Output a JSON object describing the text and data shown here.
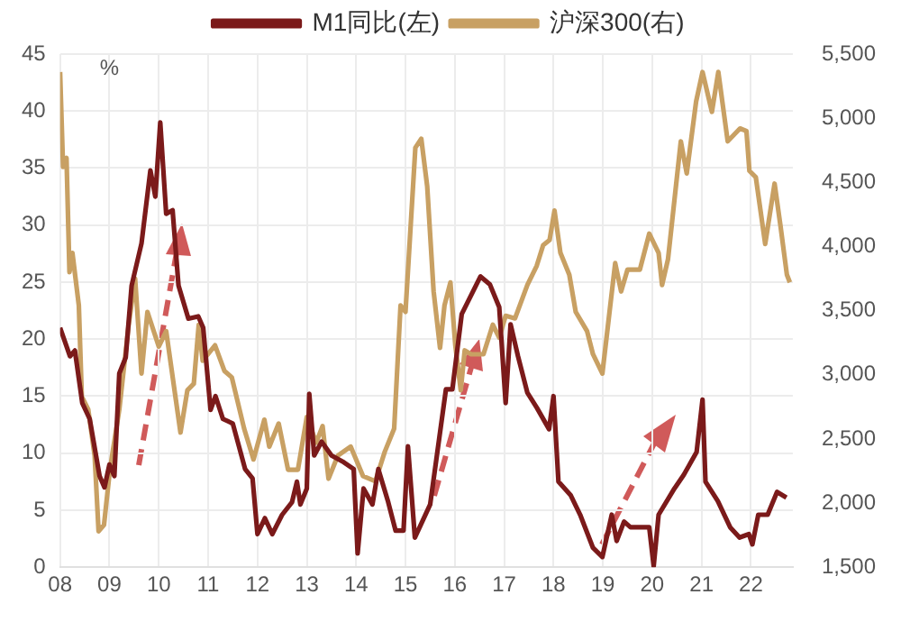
{
  "chart_data": {
    "type": "line",
    "ylabel": "%",
    "legend": "top",
    "grid": true,
    "marker": "none",
    "line_style": "solid",
    "xlim": [
      2008,
      2022.85
    ],
    "xticks": [
      {
        "value": 2008,
        "label": "08"
      },
      {
        "value": 2009,
        "label": "09"
      },
      {
        "value": 2010,
        "label": "10"
      },
      {
        "value": 2011,
        "label": "11"
      },
      {
        "value": 2012,
        "label": "12"
      },
      {
        "value": 2013,
        "label": "13"
      },
      {
        "value": 2014,
        "label": "14"
      },
      {
        "value": 2015,
        "label": "15"
      },
      {
        "value": 2016,
        "label": "16"
      },
      {
        "value": 2017,
        "label": "17"
      },
      {
        "value": 2018,
        "label": "18"
      },
      {
        "value": 2019,
        "label": "19"
      },
      {
        "value": 2020,
        "label": "20"
      },
      {
        "value": 2021,
        "label": "21"
      },
      {
        "value": 2022,
        "label": "22"
      }
    ],
    "ylim": [
      0,
      45
    ],
    "yticks": [
      0,
      5,
      10,
      15,
      20,
      25,
      30,
      35,
      40,
      45
    ],
    "y2lim": [
      1500,
      5500
    ],
    "y2ticks": [
      {
        "value": 1500,
        "label": "1,500"
      },
      {
        "value": 2000,
        "label": "2,000"
      },
      {
        "value": 2500,
        "label": "2,500"
      },
      {
        "value": 3000,
        "label": "3,000"
      },
      {
        "value": 3500,
        "label": "3,500"
      },
      {
        "value": 4000,
        "label": "4,000"
      },
      {
        "value": 4500,
        "label": "4,500"
      },
      {
        "value": 5000,
        "label": "5,000"
      },
      {
        "value": 5500,
        "label": "5,500"
      }
    ],
    "series": [
      {
        "name": "M1同比(左)",
        "color": "#7b1a1a",
        "x": [
          2008.0,
          2008.2,
          2008.3,
          2008.45,
          2008.6,
          2008.8,
          2008.9,
          2009.0,
          2009.1,
          2009.2,
          2009.33,
          2009.45,
          2009.65,
          2009.83,
          2009.93,
          2010.03,
          2010.15,
          2010.28,
          2010.4,
          2010.6,
          2010.8,
          2010.9,
          2011.05,
          2011.15,
          2011.3,
          2011.5,
          2011.6,
          2011.75,
          2011.9,
          2012.0,
          2012.15,
          2012.3,
          2012.5,
          2012.7,
          2012.8,
          2012.87,
          2013.0,
          2013.05,
          2013.15,
          2013.3,
          2013.5,
          2013.75,
          2013.95,
          2014.03,
          2014.15,
          2014.33,
          2014.45,
          2014.65,
          2014.8,
          2014.96,
          2015.05,
          2015.19,
          2015.5,
          2015.82,
          2015.95,
          2016.14,
          2016.52,
          2016.71,
          2016.9,
          2017.03,
          2017.13,
          2017.28,
          2017.47,
          2017.66,
          2017.91,
          2018.0,
          2018.1,
          2018.35,
          2018.54,
          2018.8,
          2018.99,
          2019.18,
          2019.28,
          2019.43,
          2019.56,
          2019.94,
          2020.03,
          2020.13,
          2020.45,
          2020.64,
          2020.9,
          2021.02,
          2021.08,
          2021.33,
          2021.58,
          2021.77,
          2021.96,
          2022.03,
          2022.15,
          2022.34,
          2022.53,
          2022.72
        ],
        "values": [
          21,
          18.5,
          19,
          14.4,
          13,
          8,
          7,
          9,
          8,
          17,
          18.4,
          24.7,
          28.4,
          34.8,
          32.5,
          39,
          31,
          31.3,
          24.7,
          21.8,
          22,
          21,
          13.8,
          15,
          13,
          12.6,
          11,
          8.6,
          7.8,
          2.9,
          4.3,
          2.9,
          4.6,
          5.7,
          7.5,
          5.5,
          6.9,
          15.2,
          9.8,
          11,
          9.8,
          9.2,
          8.6,
          1.2,
          6.9,
          5.5,
          8.6,
          5.7,
          3.2,
          3.2,
          10.6,
          2.6,
          5.5,
          15.6,
          15.6,
          22.2,
          25.5,
          24.8,
          22.8,
          14.4,
          21.3,
          18.5,
          15.3,
          14,
          12.1,
          15,
          7.5,
          6.3,
          4.6,
          1.7,
          0.9,
          4.6,
          2.3,
          4,
          3.5,
          3.5,
          0.1,
          4.6,
          6.9,
          8.1,
          10.1,
          14.7,
          7.5,
          5.8,
          3.5,
          2.6,
          2.9,
          2,
          4.6,
          4.6,
          6.6,
          6.1
        ]
      },
      {
        "name": "沪深300(右)",
        "color": "#c8a063",
        "axis": "y2",
        "x": [
          2008.0,
          2008.06,
          2008.13,
          2008.19,
          2008.25,
          2008.38,
          2008.44,
          2008.57,
          2008.7,
          2008.78,
          2008.89,
          2009.01,
          2009.2,
          2009.39,
          2009.52,
          2009.65,
          2009.77,
          2010.0,
          2010.15,
          2010.44,
          2010.58,
          2010.71,
          2010.81,
          2010.89,
          2011.14,
          2011.33,
          2011.48,
          2011.73,
          2011.92,
          2012.14,
          2012.24,
          2012.43,
          2012.62,
          2012.82,
          2013.0,
          2013.19,
          2013.32,
          2013.44,
          2013.63,
          2013.89,
          2014.14,
          2014.39,
          2014.58,
          2014.77,
          2014.9,
          2015.0,
          2015.2,
          2015.32,
          2015.44,
          2015.57,
          2015.7,
          2015.79,
          2015.91,
          2016.01,
          2016.12,
          2016.2,
          2016.33,
          2016.58,
          2016.77,
          2016.9,
          2017.03,
          2017.22,
          2017.47,
          2017.66,
          2017.79,
          2017.92,
          2018.02,
          2018.14,
          2018.32,
          2018.45,
          2018.68,
          2018.8,
          2018.99,
          2019.12,
          2019.25,
          2019.37,
          2019.5,
          2019.75,
          2019.94,
          2020.13,
          2020.2,
          2020.32,
          2020.58,
          2020.7,
          2020.89,
          2021.02,
          2021.21,
          2021.34,
          2021.53,
          2021.78,
          2021.91,
          2021.97,
          2022.1,
          2022.29,
          2022.48,
          2022.6,
          2022.73,
          2022.79
        ],
        "values": [
          5360,
          4620,
          4690,
          3800,
          3950,
          3540,
          2830,
          2730,
          2370,
          1780,
          1830,
          2260,
          2730,
          3390,
          3750,
          3010,
          3490,
          3220,
          3340,
          2550,
          2880,
          2930,
          3390,
          3110,
          3230,
          3030,
          2980,
          2580,
          2340,
          2650,
          2440,
          2620,
          2260,
          2260,
          2670,
          2470,
          2600,
          2190,
          2370,
          2440,
          2210,
          2170,
          2400,
          2580,
          3540,
          3490,
          4770,
          4840,
          4470,
          3650,
          3210,
          3540,
          3720,
          3230,
          2880,
          3190,
          3160,
          3160,
          3390,
          3290,
          3460,
          3440,
          3700,
          3850,
          4010,
          4050,
          4280,
          3950,
          3780,
          3490,
          3340,
          3160,
          3010,
          3440,
          3870,
          3650,
          3820,
          3820,
          4100,
          3950,
          3700,
          3900,
          4820,
          4570,
          5130,
          5360,
          5050,
          5360,
          4820,
          4920,
          4900,
          4590,
          4540,
          4020,
          4490,
          4160,
          3780,
          3720
        ]
      }
    ]
  }
}
